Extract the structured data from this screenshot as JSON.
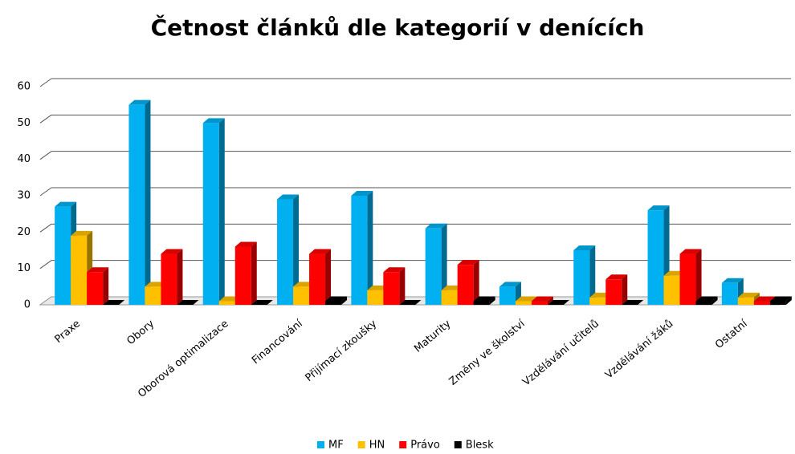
{
  "chart_data": {
    "type": "bar",
    "title": "Četnost článků dle kategorií  v denících",
    "categories": [
      "Praxe",
      "Obory",
      "Oborová optimalizace",
      "Financování",
      "Přijímací zkoušky",
      "Maturity",
      "Změny ve školství",
      "Vzdělávání učitelů",
      "Vzdělávání žáků",
      "Ostatní"
    ],
    "series": [
      {
        "name": "MF",
        "color": "#00b0f0",
        "values": [
          27,
          55,
          50,
          29,
          30,
          21,
          5,
          15,
          26,
          6
        ]
      },
      {
        "name": "HN",
        "color": "#ffc000",
        "values": [
          19,
          5,
          1,
          5,
          4,
          4,
          1,
          2,
          8,
          2
        ]
      },
      {
        "name": "Právo",
        "color": "#ff0000",
        "values": [
          9,
          14,
          16,
          14,
          9,
          11,
          1,
          7,
          14,
          1
        ]
      },
      {
        "name": "Blesk",
        "color": "#000000",
        "values": [
          0,
          0,
          0,
          1,
          0,
          1,
          0,
          0,
          1,
          1
        ]
      }
    ],
    "ylim": [
      0,
      60
    ],
    "yticks": [
      0,
      10,
      20,
      30,
      40,
      50,
      60
    ],
    "grid": true,
    "legend": "bottom"
  }
}
